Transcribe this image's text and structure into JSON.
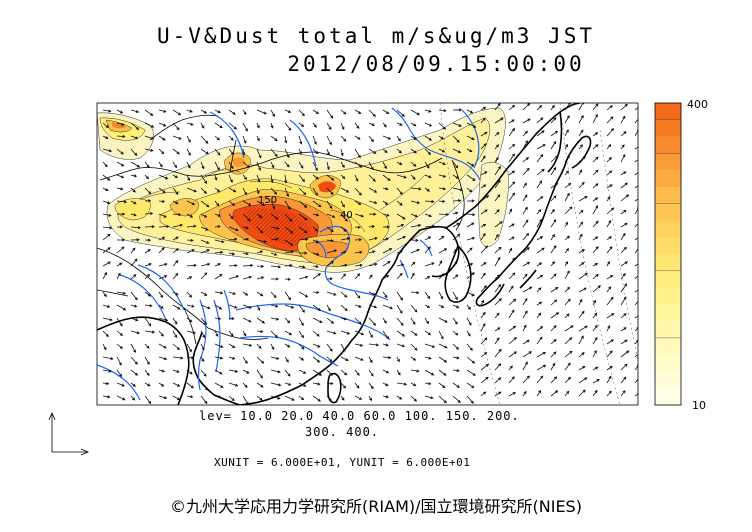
{
  "title": {
    "line1": "U-V&Dust total m/s&ug/m3 JST",
    "line2": "2012/08/09.15:00:00"
  },
  "contour_levels": {
    "line1": "lev= 10.0 20.0 40.0 60.0 100. 150. 200.",
    "line2": "300. 400.",
    "values": [
      10,
      20,
      40,
      60,
      100,
      150,
      200,
      300,
      400
    ]
  },
  "contour_labels": [
    "150",
    "40"
  ],
  "units_text": "XUNIT = 6.000E+01, YUNIT = 6.000E+01",
  "colorbar": {
    "max_label": "400",
    "min_label": "10",
    "colors": [
      "#f36a1a",
      "#f57a22",
      "#f78a2c",
      "#f99b36",
      "#fbab40",
      "#fdbb4a",
      "#fec754",
      "#ffd25e",
      "#ffdc68",
      "#ffe572",
      "#ffed7e",
      "#fff28c",
      "#fff59c",
      "#fff8ac",
      "#fffabc",
      "#fffccc",
      "#fffdda",
      "#fffee6"
    ]
  },
  "colors": {
    "coast": "#000000",
    "rivers": "#1e64ff",
    "dust_high": "#f04b14",
    "dust_low": "#fbf5c4"
  },
  "copyright": "©九州大学応用力学研究所(RIAM)/国立環境研究所(NIES)"
}
